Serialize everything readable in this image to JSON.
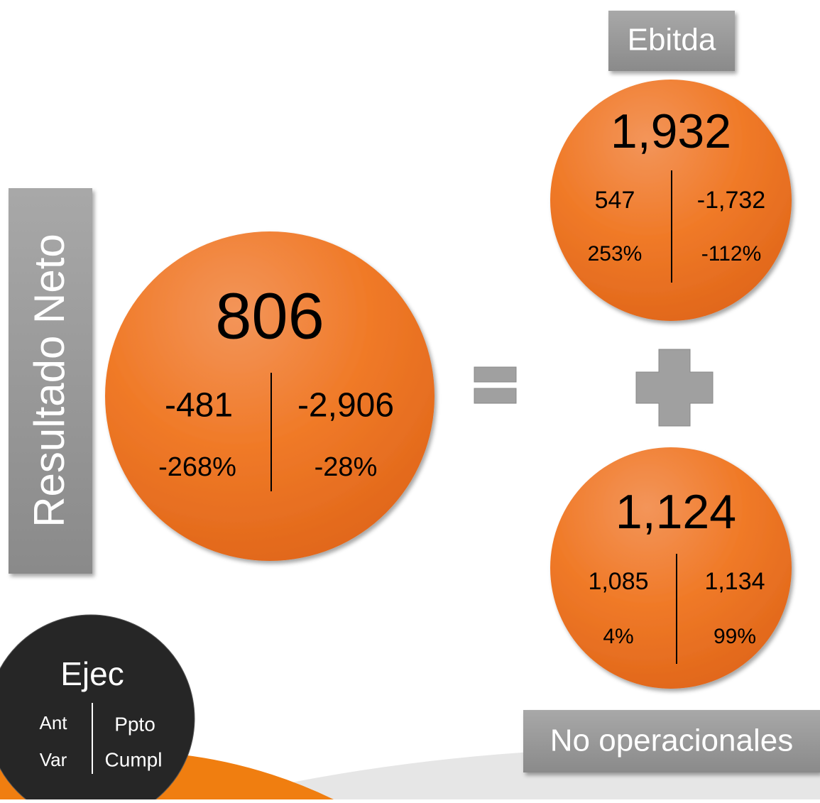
{
  "left_label": "Resultado Neto",
  "main": {
    "value": "806",
    "left_top": "-481",
    "right_top": "-2,906",
    "left_bottom": "-268%",
    "right_bottom": "-28%"
  },
  "top": {
    "label": "Ebitda",
    "value": "1,932",
    "left_top": "547",
    "right_top": "-1,732",
    "left_bottom": "253%",
    "right_bottom": "-112%"
  },
  "bottom": {
    "label": "No operacionales",
    "value": "1,124",
    "left_top": "1,085",
    "right_top": "1,134",
    "left_bottom": "4%",
    "right_bottom": "99%"
  },
  "legend": {
    "value": "Ejec",
    "left_top": "Ant",
    "right_top": "Ppto",
    "left_bottom": "Var",
    "right_bottom": "Cumpl"
  }
}
